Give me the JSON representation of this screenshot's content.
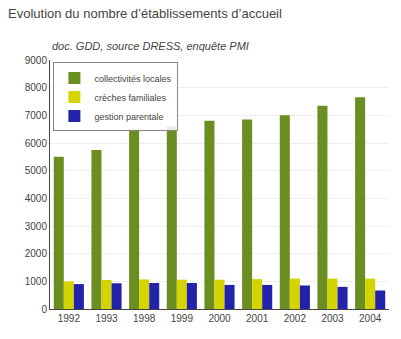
{
  "chart_data": {
    "type": "bar",
    "title": "Evolution du nombre d’établissements d’accueil",
    "subtitle": "doc. GDD, source DRESS, enquête PMI",
    "categories": [
      "1992",
      "1993",
      "1998",
      "1999",
      "2000",
      "2001",
      "2002",
      "2003",
      "2004"
    ],
    "series": [
      {
        "name": "collectivités locales",
        "color": "#6B8E23",
        "values": [
          5500,
          5750,
          6500,
          6600,
          6800,
          6850,
          7000,
          7350,
          7650
        ]
      },
      {
        "name": "crèches familiales",
        "color": "#D4D400",
        "values": [
          1000,
          1050,
          1070,
          1060,
          1060,
          1080,
          1100,
          1100,
          1100
        ]
      },
      {
        "name": "gestion parentale",
        "color": "#2222AA",
        "values": [
          900,
          930,
          940,
          940,
          870,
          870,
          850,
          800,
          670
        ]
      }
    ],
    "ylim": [
      0,
      9000
    ],
    "yticks": [
      0,
      1000,
      2000,
      3000,
      4000,
      5000,
      6000,
      7000,
      8000,
      9000
    ],
    "grid": true,
    "legend": "upper left"
  }
}
